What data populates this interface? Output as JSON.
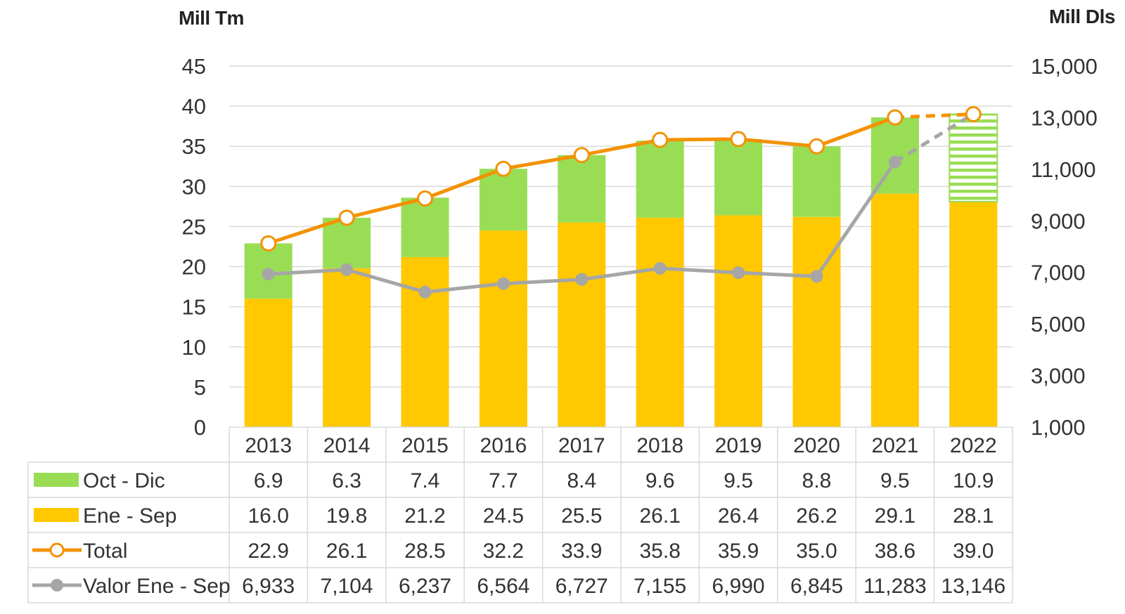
{
  "chart_data": {
    "type": "bar",
    "stacked": true,
    "title": "",
    "y_left_label": "Mill Tm",
    "y_right_label": "Mill Dls",
    "y_left_range": [
      0,
      45
    ],
    "y_left_ticks": [
      "0",
      "5",
      "10",
      "15",
      "20",
      "25",
      "30",
      "35",
      "40",
      "45"
    ],
    "y_right_range": [
      1000,
      15000
    ],
    "y_right_ticks": [
      "1,000",
      "3,000",
      "5,000",
      "7,000",
      "9,000",
      "11,000",
      "13,000",
      "15,000"
    ],
    "grid": true,
    "categories": [
      "2013",
      "2014",
      "2015",
      "2016",
      "2017",
      "2018",
      "2019",
      "2020",
      "2021",
      "2022"
    ],
    "series": [
      {
        "name": "Oct - Dic",
        "kind": "bar",
        "axis": "left",
        "color": "#99dd55",
        "values": [
          6.9,
          6.3,
          7.4,
          7.7,
          8.4,
          9.6,
          9.5,
          8.8,
          9.5,
          10.9
        ],
        "labels": [
          "6.9",
          "6.3",
          "7.4",
          "7.7",
          "8.4",
          "9.6",
          "9.5",
          "8.8",
          "9.5",
          "10.9"
        ],
        "hatched_last": true
      },
      {
        "name": "Ene - Sep",
        "kind": "bar",
        "axis": "left",
        "color": "#ffc800",
        "values": [
          16.0,
          19.8,
          21.2,
          24.5,
          25.5,
          26.1,
          26.4,
          26.2,
          29.1,
          28.1
        ],
        "labels": [
          "16.0",
          "19.8",
          "21.2",
          "24.5",
          "25.5",
          "26.1",
          "26.4",
          "26.2",
          "29.1",
          "28.1"
        ]
      },
      {
        "name": "Total",
        "kind": "line",
        "axis": "left",
        "color": "#f39200",
        "marker": "open-circle",
        "values": [
          22.9,
          26.1,
          28.5,
          32.2,
          33.9,
          35.8,
          35.9,
          35.0,
          38.6,
          39.0
        ],
        "labels": [
          "22.9",
          "26.1",
          "28.5",
          "32.2",
          "33.9",
          "35.8",
          "35.9",
          "35.0",
          "38.6",
          "39.0"
        ],
        "dashed_last_segment": true
      },
      {
        "name": "Valor Ene - Sep",
        "kind": "line",
        "axis": "right",
        "color": "#a6a6a6",
        "marker": "filled-circle",
        "values": [
          6933,
          7104,
          6237,
          6564,
          6727,
          7155,
          6990,
          6845,
          11283,
          13146
        ],
        "labels": [
          "6,933",
          "7,104",
          "6,237",
          "6,564",
          "6,727",
          "7,155",
          "6,990",
          "6,845",
          "11,283",
          "13,146"
        ],
        "dashed_last_segment": true
      }
    ]
  }
}
